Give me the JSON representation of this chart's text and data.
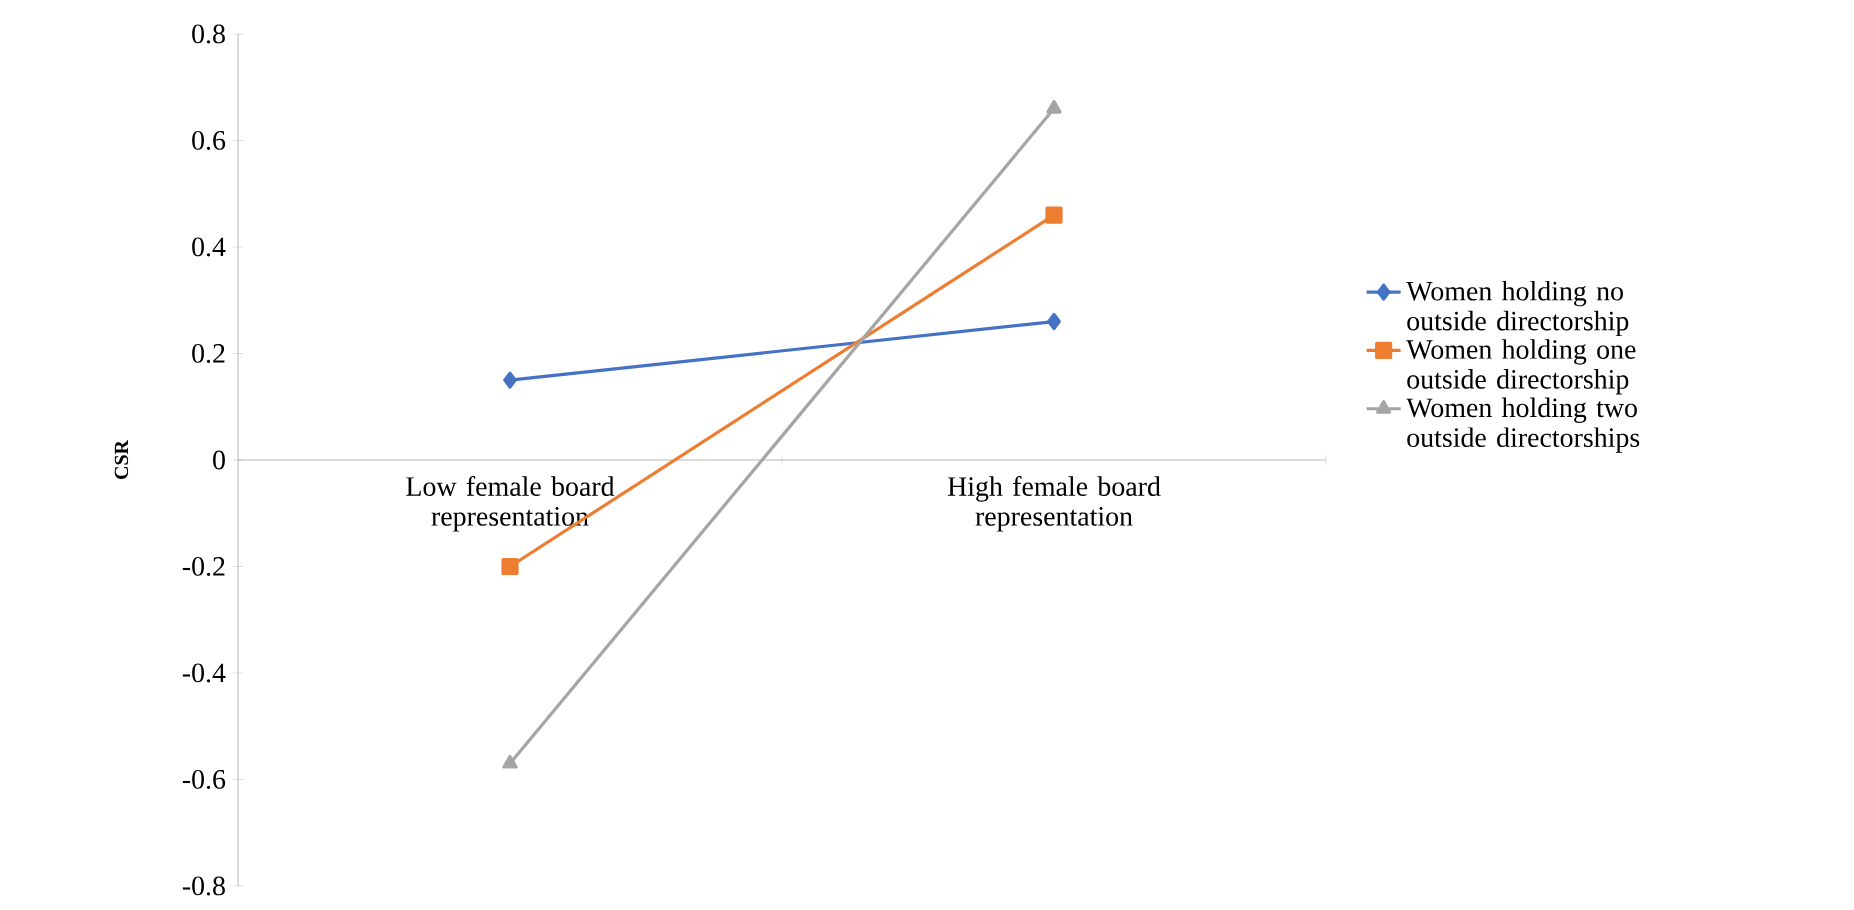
{
  "chart_data": {
    "type": "line",
    "ylabel": "CSR",
    "categories": [
      "Low female board representation",
      "High female board representation"
    ],
    "series": [
      {
        "name": "Women holding no outside directorship",
        "color": "#4472c4",
        "marker": "diamond",
        "values": [
          0.15,
          0.26
        ]
      },
      {
        "name": "Women holding one outside directorship",
        "color": "#ed7d31",
        "marker": "square",
        "values": [
          -0.2,
          0.46
        ]
      },
      {
        "name": "Women holding two outside directorships",
        "color": "#a5a5a5",
        "marker": "triangle",
        "values": [
          -0.57,
          0.66
        ]
      }
    ],
    "ylim": [
      -0.8,
      0.8
    ],
    "yticks": [
      -0.8,
      -0.6,
      -0.4,
      -0.2,
      0,
      0.2,
      0.4,
      0.6,
      0.8
    ],
    "grid": false,
    "legend": "right"
  }
}
